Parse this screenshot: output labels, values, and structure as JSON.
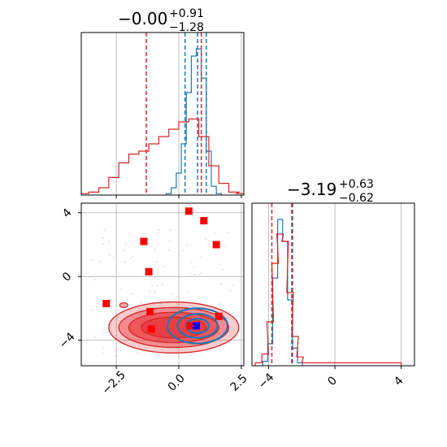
{
  "colors": {
    "blue": "#1f77b4",
    "red": "#d62728",
    "red_fill": "#e8383d",
    "marker_red": "#ff0000",
    "marker_blue": "#0000ff",
    "grid": "#b0b0b0"
  },
  "chart_data": [
    {
      "type": "histogram",
      "panel": "top-left",
      "title_value": "−0.00",
      "title_sup": "+0.91",
      "title_sub": "−1.28",
      "xlim": [
        -3.9,
        2.6
      ],
      "grid": true,
      "series": [
        {
          "color": "blue",
          "x": [
            -0.4,
            -0.2,
            0.0,
            0.2,
            0.4,
            0.6,
            0.8,
            1.0,
            1.2,
            1.4,
            1.6
          ],
          "density": [
            0.01,
            0.05,
            0.15,
            0.35,
            0.7,
            0.95,
            1.0,
            0.8,
            0.3,
            0.06,
            0.01
          ],
          "dashed_lines_x": [
            0.25,
            0.75,
            1.1
          ]
        },
        {
          "color": "red",
          "x": [
            -3.8,
            -3.4,
            -3.0,
            -2.6,
            -2.2,
            -1.8,
            -1.4,
            -1.0,
            -0.6,
            -0.2,
            0.2,
            0.6,
            1.0,
            1.4,
            1.8,
            2.2,
            2.5
          ],
          "density": [
            0.01,
            0.02,
            0.05,
            0.12,
            0.22,
            0.28,
            0.3,
            0.35,
            0.4,
            0.45,
            0.5,
            0.52,
            0.4,
            0.2,
            0.08,
            0.02,
            0.01
          ],
          "dashed_lines_x": [
            -1.3,
            0.9
          ]
        }
      ]
    },
    {
      "type": "histogram",
      "panel": "bottom-right",
      "title_value": "−3.19",
      "title_sup": "+0.63",
      "title_sub": "−0.62",
      "xlim": [
        -5.0,
        4.8
      ],
      "xticks": [
        -4,
        0,
        4
      ],
      "xticklabels": [
        "−4",
        "0",
        "4"
      ],
      "grid": true,
      "series": [
        {
          "color": "blue",
          "x": [
            -4.2,
            -3.9,
            -3.6,
            -3.3,
            -3.0,
            -2.7,
            -2.4,
            -2.1
          ],
          "density": [
            0.03,
            0.15,
            0.6,
            1.0,
            0.85,
            0.45,
            0.12,
            0.02
          ],
          "dashed_lines_x": [
            -2.55
          ]
        },
        {
          "color": "red",
          "x": [
            -4.6,
            -4.2,
            -3.9,
            -3.6,
            -3.3,
            -3.0,
            -2.7,
            -2.4,
            -2.1,
            -1.8,
            3.3,
            3.8
          ],
          "density": [
            0.02,
            0.08,
            0.3,
            0.7,
            0.9,
            0.85,
            0.5,
            0.2,
            0.06,
            0.02,
            0.02,
            0.02
          ],
          "dashed_lines_x": [
            -3.8,
            -2.6
          ]
        }
      ]
    },
    {
      "type": "scatter",
      "panel": "bottom-left",
      "xlim": [
        -3.9,
        2.6
      ],
      "ylim": [
        -5.6,
        4.6
      ],
      "xticks": [
        -2.5,
        0.0,
        2.5
      ],
      "xticklabels": [
        "−2.5",
        "0.0",
        "2.5"
      ],
      "yticks": [
        -4,
        0,
        4
      ],
      "yticklabels": [
        "−4",
        "0",
        "4"
      ],
      "grid": true,
      "red_squares": [
        [
          0.4,
          4.1
        ],
        [
          1.0,
          3.5
        ],
        [
          -1.4,
          2.2
        ],
        [
          1.5,
          2.0
        ],
        [
          -1.2,
          0.3
        ],
        [
          -2.9,
          -1.7
        ],
        [
          -1.15,
          -2.2
        ],
        [
          1.6,
          -2.5
        ],
        [
          -1.1,
          -3.3
        ],
        [
          0.45,
          -3.1
        ]
      ],
      "blue_squares": [
        [
          0.7,
          -3.1
        ]
      ],
      "contours": [
        {
          "color": "red",
          "cx": -0.2,
          "cy": -3.2,
          "levels": [
            [
              2.6,
              1.6
            ],
            [
              2.2,
              1.25
            ],
            [
              1.8,
              0.95
            ],
            [
              1.3,
              0.65
            ]
          ]
        },
        {
          "color": "blue",
          "cx": 0.75,
          "cy": -3.1,
          "levels": [
            [
              1.2,
              1.1
            ],
            [
              0.8,
              0.75
            ],
            [
              0.45,
              0.45
            ]
          ]
        }
      ]
    }
  ]
}
